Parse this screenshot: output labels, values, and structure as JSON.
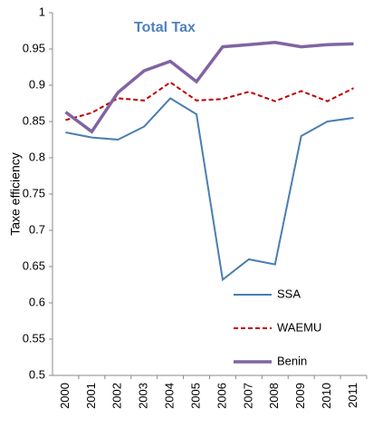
{
  "chart_data": {
    "type": "line",
    "title": "Total Tax",
    "y_label": "Taxe efficiency",
    "categories": [
      "2000",
      "2001",
      "2002",
      "2003",
      "2004",
      "2005",
      "2006",
      "2007",
      "2008",
      "2009",
      "2010",
      "2011"
    ],
    "series": [
      {
        "name": "SSA",
        "color": "#4a7eb0",
        "dash": false,
        "linewidth": 2,
        "values": [
          0.835,
          0.828,
          0.825,
          0.843,
          0.882,
          0.86,
          0.632,
          0.66,
          0.653,
          0.83,
          0.85,
          0.855
        ]
      },
      {
        "name": "WAEMU",
        "color": "#c00000",
        "dash": true,
        "linewidth": 2,
        "values": [
          0.852,
          0.862,
          0.882,
          0.879,
          0.904,
          0.879,
          0.881,
          0.891,
          0.878,
          0.892,
          0.878,
          0.896
        ]
      },
      {
        "name": "Benin",
        "color": "#8064a2",
        "dash": false,
        "linewidth": 3.5,
        "values": [
          0.863,
          0.836,
          0.89,
          0.92,
          0.933,
          0.905,
          0.953,
          0.956,
          0.959,
          0.953,
          0.956,
          0.957
        ]
      }
    ],
    "ylim": [
      0.5,
      1
    ],
    "yticks": [
      0.5,
      0.55,
      0.6,
      0.65,
      0.7,
      0.75,
      0.8,
      0.85,
      0.9,
      0.95,
      1
    ],
    "grid": false,
    "legend": "lower right",
    "title_color": "#4f81bd"
  }
}
